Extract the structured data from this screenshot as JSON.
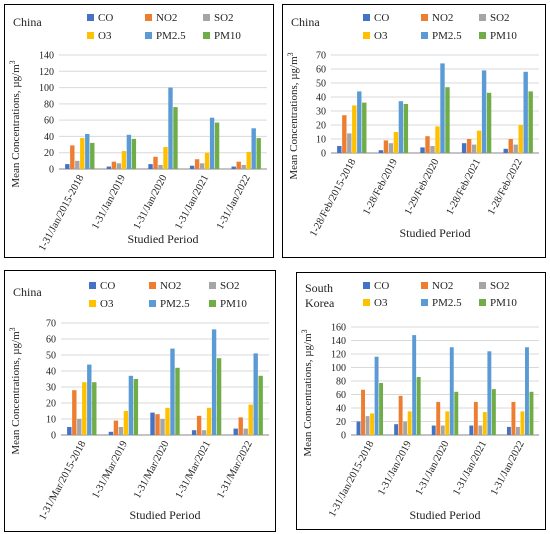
{
  "series_colors": {
    "CO": "#4472c4",
    "NO2": "#ed7d31",
    "SO2": "#a5a5a5",
    "O3": "#ffc000",
    "PM2.5": "#5b9bd5",
    "PM10": "#70ad47"
  },
  "chart_data": [
    {
      "type": "bar",
      "title": "China",
      "ylabel": "Mean Concentrations, µg/m³",
      "xlabel": "Studied Period",
      "ylim": [
        0,
        140
      ],
      "ytick_step": 20,
      "grid": "horizontal",
      "legend_position": "top",
      "categories": [
        "1-31/Jan/2015-2018",
        "1-31/Jan/2019",
        "1-31/Jan/2020",
        "1-31/Jan/2021",
        "1-31/Jan/2022"
      ],
      "series": [
        {
          "name": "CO",
          "values": [
            6,
            3,
            6,
            4,
            3
          ]
        },
        {
          "name": "NO2",
          "values": [
            29,
            9,
            15,
            12,
            9
          ]
        },
        {
          "name": "SO2",
          "values": [
            10,
            7,
            5,
            7,
            5
          ]
        },
        {
          "name": "O3",
          "values": [
            38,
            22,
            27,
            20,
            21
          ]
        },
        {
          "name": "PM2.5",
          "values": [
            43,
            42,
            100,
            63,
            50
          ]
        },
        {
          "name": "PM10",
          "values": [
            32,
            37,
            76,
            57,
            38
          ]
        }
      ]
    },
    {
      "type": "bar",
      "title": "China",
      "ylabel": "Mean Concentrations, µg/m³",
      "xlabel": "Studied Period",
      "ylim": [
        0,
        70
      ],
      "ytick_step": 10,
      "grid": "horizontal",
      "legend_position": "top",
      "categories": [
        "1-28/Feb/2015-2018",
        "1-28/Feb/2019",
        "1-29/Feb/2020",
        "1-28/Feb/2021",
        "1-28/Feb/2022"
      ],
      "series": [
        {
          "name": "CO",
          "values": [
            5,
            2,
            4,
            7,
            3
          ]
        },
        {
          "name": "NO2",
          "values": [
            27,
            9,
            12,
            10,
            10
          ]
        },
        {
          "name": "SO2",
          "values": [
            14,
            7,
            5,
            6,
            6
          ]
        },
        {
          "name": "O3",
          "values": [
            34,
            15,
            19,
            16,
            20
          ]
        },
        {
          "name": "PM2.5",
          "values": [
            44,
            37,
            64,
            59,
            58
          ]
        },
        {
          "name": "PM10",
          "values": [
            36,
            35,
            47,
            43,
            44
          ]
        }
      ]
    },
    {
      "type": "bar",
      "title": "China",
      "ylabel": "Mean Concentrations, µg/m³",
      "xlabel": "Studied Period",
      "ylim": [
        0,
        70
      ],
      "ytick_step": 10,
      "grid": "horizontal",
      "legend_position": "top",
      "categories": [
        "1-31/Mar/2015-2018",
        "1-31/Mar/2019",
        "1-31/Mar/2020",
        "1-31/Mar/2021",
        "1-31/Mar/2022"
      ],
      "series": [
        {
          "name": "CO",
          "values": [
            5,
            2,
            14,
            3,
            4
          ]
        },
        {
          "name": "NO2",
          "values": [
            28,
            9,
            13,
            12,
            11
          ]
        },
        {
          "name": "SO2",
          "values": [
            10,
            5,
            10,
            3,
            4
          ]
        },
        {
          "name": "O3",
          "values": [
            33,
            15,
            17,
            17,
            19
          ]
        },
        {
          "name": "PM2.5",
          "values": [
            44,
            37,
            54,
            66,
            51
          ]
        },
        {
          "name": "PM10",
          "values": [
            33,
            35,
            42,
            48,
            37
          ]
        }
      ]
    },
    {
      "type": "bar",
      "title": "South Korea",
      "ylabel": "Mean Concentrations, µg/m³",
      "xlabel": "Studied Period",
      "ylim": [
        0,
        160
      ],
      "ytick_step": 20,
      "grid": "horizontal",
      "legend_position": "top",
      "categories": [
        "1-31/Jan/2015-2018",
        "1-31/Jan/2019",
        "1-31/Jan/2020",
        "1-31/Jan/2021",
        "1-31/Jan/2022"
      ],
      "series": [
        {
          "name": "CO",
          "values": [
            20,
            16,
            14,
            14,
            12
          ]
        },
        {
          "name": "NO2",
          "values": [
            67,
            58,
            49,
            49,
            49
          ]
        },
        {
          "name": "SO2",
          "values": [
            28,
            20,
            14,
            14,
            12
          ]
        },
        {
          "name": "O3",
          "values": [
            32,
            35,
            35,
            34,
            35
          ]
        },
        {
          "name": "PM2.5",
          "values": [
            116,
            148,
            130,
            124,
            130
          ]
        },
        {
          "name": "PM10",
          "values": [
            77,
            86,
            64,
            68,
            64
          ]
        }
      ]
    }
  ]
}
